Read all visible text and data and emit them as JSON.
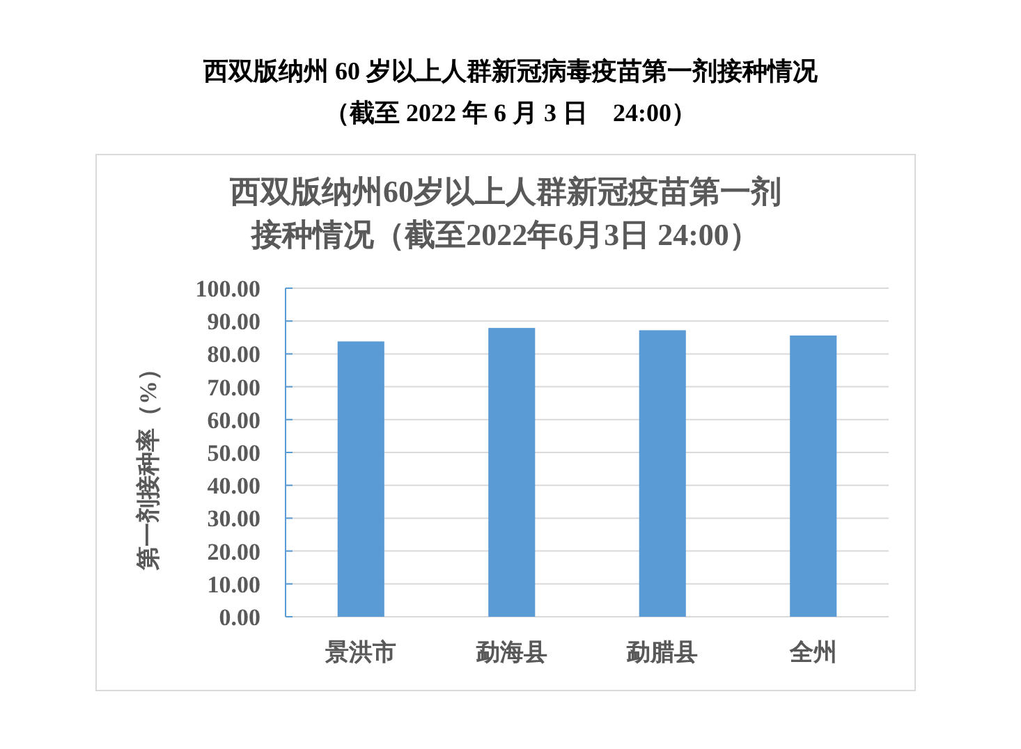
{
  "chart_data": {
    "type": "bar",
    "title": "西双版纳州 60 岁以上人群新冠病毒疫苗第一剂接种情况（截至 2022 年 6 月 3 日　24:00）",
    "subtitle": "西双版纳州60岁以上人群新冠疫苗第一剂接种情况（截至2022年6月3日 24:00）",
    "ylabel": "第一剂接种率（%）",
    "categories": [
      "景洪市",
      "勐海县",
      "勐腊县",
      "全州"
    ],
    "values": [
      83.8,
      87.9,
      87.2,
      85.6
    ],
    "color": "#5b9bd5",
    "ylim": [
      0,
      100
    ],
    "yticks": [
      {
        "value": 0,
        "label": "0.00"
      },
      {
        "value": 10,
        "label": "10.00"
      },
      {
        "value": 20,
        "label": "20.00"
      },
      {
        "value": 30,
        "label": "30.00"
      },
      {
        "value": 40,
        "label": "40.00"
      },
      {
        "value": 50,
        "label": "50.00"
      },
      {
        "value": 60,
        "label": "60.00"
      },
      {
        "value": 70,
        "label": "70.00"
      },
      {
        "value": 80,
        "label": "80.00"
      },
      {
        "value": 90,
        "label": "90.00"
      },
      {
        "value": 100,
        "label": "100.00"
      }
    ],
    "grid": true
  }
}
